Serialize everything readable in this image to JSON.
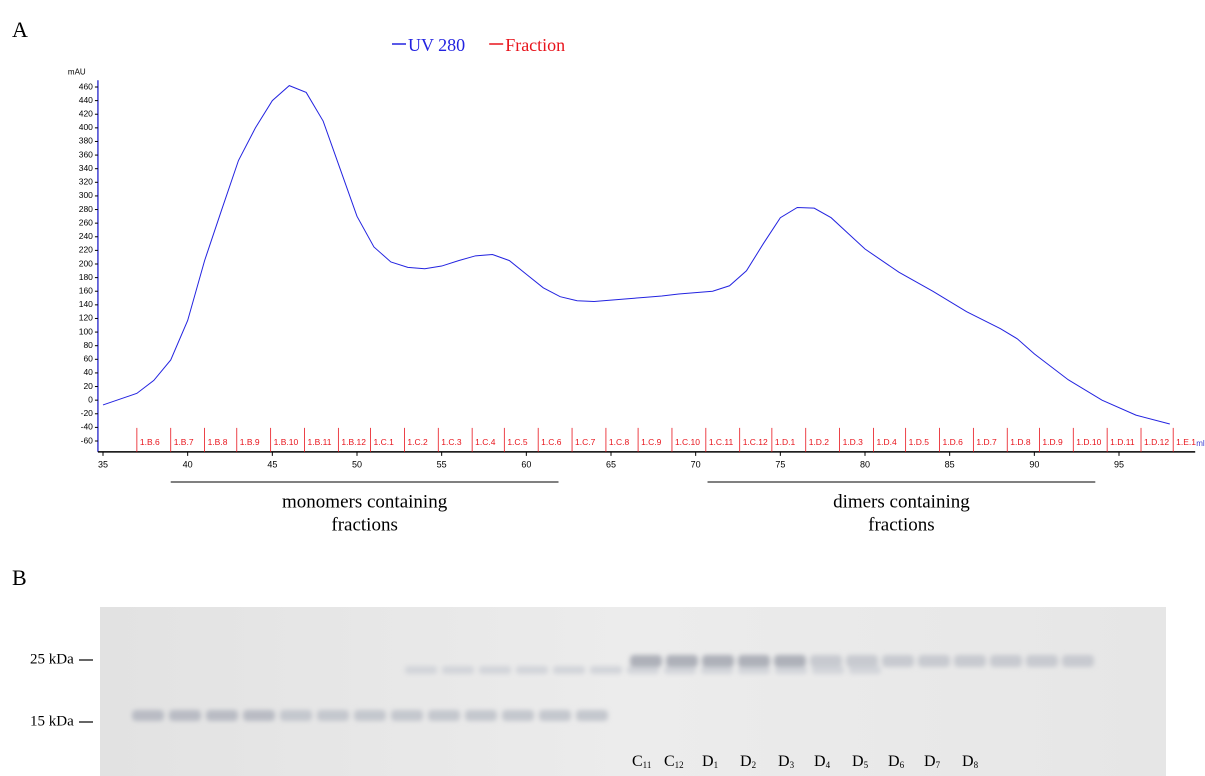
{
  "panels": [
    "A",
    "B"
  ],
  "chart_data": {
    "type": "line",
    "x_label": "ml",
    "y_label": "mAU",
    "xlim": [
      34.7,
      99.5
    ],
    "xticks": [
      35,
      40,
      45,
      50,
      55,
      60,
      65,
      70,
      75,
      80,
      85,
      90,
      95
    ],
    "ylim": [
      -76,
      470
    ],
    "yticks": [
      -60,
      -40,
      -20,
      0,
      20,
      40,
      60,
      80,
      100,
      120,
      140,
      160,
      180,
      200,
      220,
      240,
      260,
      280,
      300,
      320,
      340,
      360,
      380,
      400,
      420,
      440,
      460
    ],
    "series": [
      {
        "name": "UV 280",
        "color": "#2323e0",
        "x": [
          35,
          37,
          38,
          39,
          40,
          41,
          42,
          43,
          44,
          45,
          46,
          47,
          48,
          49,
          50,
          51,
          52,
          53,
          54,
          55,
          56,
          57,
          58,
          59,
          60,
          61,
          62,
          63,
          64,
          65,
          66,
          67,
          68,
          69,
          70,
          71,
          72,
          73,
          74,
          75,
          76,
          77,
          78,
          79,
          80,
          82,
          84,
          86,
          88,
          89,
          90,
          92,
          94,
          96,
          98
        ],
        "values": [
          -7,
          10,
          29,
          59,
          117,
          205,
          279,
          352,
          400,
          440,
          462,
          452,
          410,
          340,
          270,
          225,
          203,
          195,
          193,
          197,
          205,
          212,
          214,
          205,
          185,
          165,
          152,
          146,
          145,
          147,
          149,
          151,
          153,
          156,
          158,
          160,
          168,
          190,
          230,
          268,
          283,
          282,
          268,
          245,
          222,
          188,
          160,
          130,
          105,
          90,
          68,
          30,
          0,
          -22,
          -35
        ]
      },
      {
        "name": "Fraction",
        "color": "#e8141c",
        "x": [
          37.0,
          39.0,
          41.0,
          42.9,
          44.9,
          46.9,
          48.9,
          50.8,
          52.8,
          54.8,
          56.8,
          58.7,
          60.7,
          62.7,
          64.7,
          66.6,
          68.6,
          70.6,
          72.6,
          74.5,
          76.5,
          78.5,
          80.5,
          82.4,
          84.4,
          86.4,
          88.4,
          90.3,
          92.3,
          94.3,
          96.3,
          98.2
        ],
        "labels": [
          "1.B.6",
          "1.B.7",
          "1.B.8",
          "1.B.9",
          "1.B.10",
          "1.B.11",
          "1.B.12",
          "1.C.1",
          "1.C.2",
          "1.C.3",
          "1.C.4",
          "1.C.5",
          "1.C.6",
          "1.C.7",
          "1.C.8",
          "1.C.9",
          "1.C.10",
          "1.C.11",
          "1.C.12",
          "1.D.1",
          "1.D.2",
          "1.D.3",
          "1.D.4",
          "1.D.5",
          "1.D.6",
          "1.D.7",
          "1.D.8",
          "1.D.9",
          "1.D.10",
          "1.D.11",
          "1.D.12",
          "1.E.1"
        ]
      }
    ],
    "annotations": [
      {
        "text": [
          "monomers containing",
          "fractions"
        ],
        "x": [
          39.0,
          61.9
        ]
      },
      {
        "text": [
          "dimers containing",
          "fractions"
        ],
        "x": [
          70.7,
          93.6
        ]
      }
    ]
  },
  "gel": {
    "markers": [
      "25 kDa",
      "15 kDa"
    ],
    "lanes": [
      {
        "letter": "C",
        "index": "11"
      },
      {
        "letter": "C",
        "index": "12"
      },
      {
        "letter": "D",
        "index": "1"
      },
      {
        "letter": "D",
        "index": "2"
      },
      {
        "letter": "D",
        "index": "3"
      },
      {
        "letter": "D",
        "index": "4"
      },
      {
        "letter": "D",
        "index": "5"
      },
      {
        "letter": "D",
        "index": "6"
      },
      {
        "letter": "D",
        "index": "7"
      },
      {
        "letter": "D",
        "index": "8"
      }
    ]
  }
}
